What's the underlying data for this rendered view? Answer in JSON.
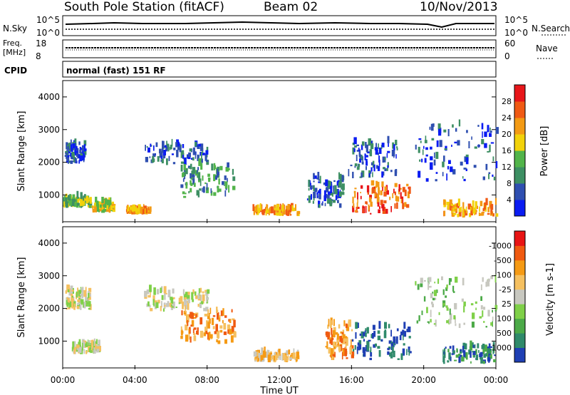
{
  "header": {
    "station": "South Pole Station (fitACF)",
    "beam": "Beam 02",
    "date": "10/Nov/2013"
  },
  "summary_panels": {
    "nsky_label": "N.Sky",
    "nsky_ticks": [
      "10^5",
      "10^0"
    ],
    "nsearch_label": "N.Search",
    "nsearch_ticks": [
      "10^5",
      "10^0"
    ],
    "freq_label_line1": "Freq.",
    "freq_label_line2": "[MHz]",
    "freq_ticks": [
      "18",
      "8"
    ],
    "nave_label": "Nave",
    "nave_ticks": [
      "60",
      "0"
    ],
    "cpid_label": "CPID",
    "cpid_value": "normal (fast) 151 RF"
  },
  "chart_data": [
    {
      "type": "heatmap",
      "name": "power",
      "ylabel": "Slant Range [km]",
      "xlabel": "Time UT",
      "xlim": [
        0,
        24
      ],
      "ylim": [
        180,
        4500
      ],
      "yticks": [
        "1000",
        "2000",
        "3000",
        "4000"
      ],
      "xticks": [
        "00:00",
        "04:00",
        "08:00",
        "12:00",
        "16:00",
        "20:00",
        "00:00"
      ],
      "colorbar": {
        "label": "Power [dB]",
        "ticks": [
          "4",
          "8",
          "12",
          "16",
          "20",
          "24",
          "28"
        ],
        "colors": [
          "#0a1cf2",
          "#2f4fb0",
          "#3d8f63",
          "#52b44a",
          "#f2d20a",
          "#f39a14",
          "#f05a14",
          "#e8161a"
        ]
      },
      "regions": [
        {
          "t0": 0.1,
          "t1": 1.2,
          "r0": 1950,
          "r1": 2550,
          "level": 1
        },
        {
          "t0": 0.0,
          "t1": 1.5,
          "r0": 600,
          "r1": 900,
          "level": 3
        },
        {
          "t0": 1.6,
          "t1": 2.8,
          "r0": 450,
          "r1": 750,
          "level": 4
        },
        {
          "t0": 3.5,
          "t1": 4.8,
          "r0": 400,
          "r1": 500,
          "level": 5
        },
        {
          "t0": 4.5,
          "t1": 8.0,
          "r0": 1900,
          "r1": 2500,
          "level": 1
        },
        {
          "t0": 6.5,
          "t1": 9.5,
          "r0": 900,
          "r1": 1900,
          "level": 2
        },
        {
          "t0": 10.5,
          "t1": 13.0,
          "r0": 350,
          "r1": 550,
          "level": 5
        },
        {
          "t0": 13.5,
          "t1": 15.5,
          "r0": 600,
          "r1": 1500,
          "level": 1
        },
        {
          "t0": 16.0,
          "t1": 19.2,
          "r0": 400,
          "r1": 1300,
          "level": 6
        },
        {
          "t0": 15.8,
          "t1": 18.5,
          "r0": 1500,
          "r1": 2600,
          "level": 1
        },
        {
          "t0": 19.5,
          "t1": 24.0,
          "r0": 1400,
          "r1": 3100,
          "level": 1
        },
        {
          "t0": 21.0,
          "t1": 24.0,
          "r0": 300,
          "r1": 700,
          "level": 5
        }
      ]
    },
    {
      "type": "heatmap",
      "name": "velocity",
      "ylabel": "Slant Range [km]",
      "xlabel": "Time UT",
      "xlim": [
        0,
        24
      ],
      "ylim": [
        180,
        4500
      ],
      "yticks": [
        "1000",
        "2000",
        "3000",
        "4000"
      ],
      "xticks": [
        "00:00",
        "04:00",
        "08:00",
        "12:00",
        "16:00",
        "20:00",
        "00:00"
      ],
      "colorbar": {
        "label": "Velocity [m s-1]",
        "ticks": [
          "1000",
          "500",
          "100",
          "25",
          "-25",
          "-100",
          "-500",
          "-1000"
        ],
        "colors": [
          "#1f3fb4",
          "#2f8a6a",
          "#4caa48",
          "#7fd048",
          "#c8c8c0",
          "#f5c060",
          "#f59a14",
          "#f05a10",
          "#e81414"
        ]
      },
      "regions": [
        {
          "t0": 0.1,
          "t1": 1.5,
          "r0": 1950,
          "r1": 2550,
          "level": 4
        },
        {
          "t0": 0.5,
          "t1": 2.0,
          "r0": 600,
          "r1": 900,
          "level": 4
        },
        {
          "t0": 4.5,
          "t1": 8.0,
          "r0": 1900,
          "r1": 2500,
          "level": 4
        },
        {
          "t0": 6.5,
          "t1": 9.5,
          "r0": 900,
          "r1": 1900,
          "level": 6
        },
        {
          "t0": 10.5,
          "t1": 13.0,
          "r0": 350,
          "r1": 600,
          "level": 5
        },
        {
          "t0": 16.0,
          "t1": 19.2,
          "r0": 400,
          "r1": 1400,
          "level": 0
        },
        {
          "t0": 14.5,
          "t1": 16.0,
          "r0": 400,
          "r1": 1500,
          "level": 6
        },
        {
          "t0": 19.5,
          "t1": 24.0,
          "r0": 1400,
          "r1": 2900,
          "level": 3
        },
        {
          "t0": 21.0,
          "t1": 24.0,
          "r0": 300,
          "r1": 800,
          "level": 1
        }
      ]
    }
  ]
}
